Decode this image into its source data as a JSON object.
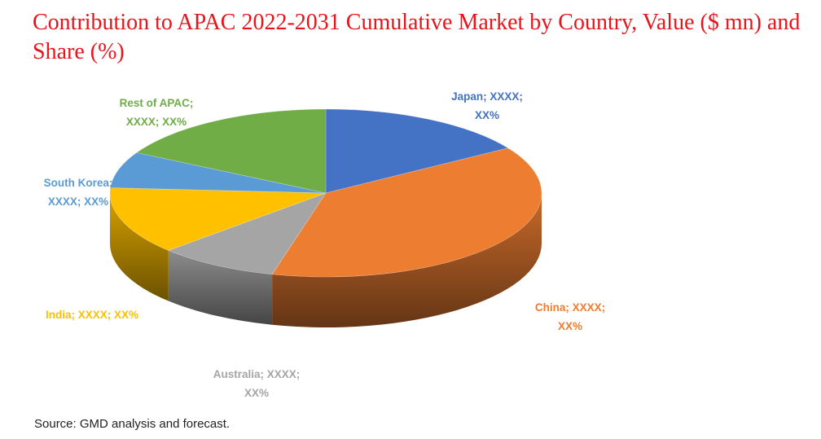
{
  "title": "Contribution to APAC 2022-2031 Cumulative Market by Country, Value ($ mn) and Share (%)",
  "source": "Source: GMD analysis and forecast.",
  "chart_data": {
    "type": "pie",
    "title": "Contribution to APAC 2022-2031 Cumulative Market by Country, Value ($ mn) and Share (%)",
    "style": "3d-tilted",
    "legend": "none",
    "slices": [
      {
        "name": "Japan",
        "share": 16,
        "label_lines": [
          "Japan; XXXX;",
          "XX%"
        ],
        "color": "#4472c4"
      },
      {
        "name": "China",
        "share": 38,
        "label_lines": [
          "China; XXXX;",
          "XX%"
        ],
        "color": "#ed7d31"
      },
      {
        "name": "Australia",
        "share": 9,
        "label_lines": [
          "Australia; XXXX;",
          "XX%"
        ],
        "color": "#a5a5a5"
      },
      {
        "name": "India",
        "share": 13,
        "label_lines": [
          "India; XXXX; XX%"
        ],
        "color": "#ffc000"
      },
      {
        "name": "South Korea",
        "share": 7,
        "label_lines": [
          "South Korea;",
          "XXXX; XX%"
        ],
        "color": "#5b9bd5"
      },
      {
        "name": "Rest of APAC",
        "share": 17,
        "label_lines": [
          "Rest of APAC;",
          "XXXX; XX%"
        ],
        "color": "#70ad47"
      }
    ]
  }
}
